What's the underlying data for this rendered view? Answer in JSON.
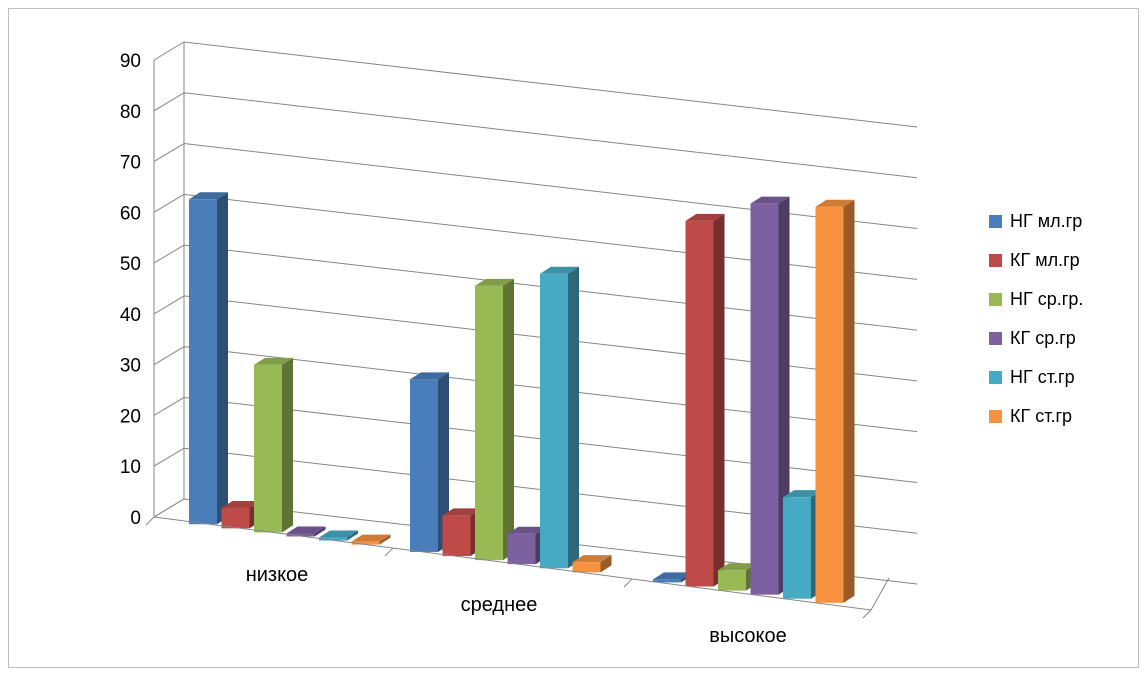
{
  "chart_data": {
    "type": "bar",
    "title": "",
    "xlabel": "",
    "ylabel": "",
    "ylim": [
      0,
      90
    ],
    "y_ticks": [
      "0",
      "10",
      "20",
      "30",
      "40",
      "50",
      "60",
      "70",
      "80",
      "90"
    ],
    "grid": true,
    "legend_position": "right",
    "categories": [
      "низкое",
      "среднее",
      "высокое"
    ],
    "series": [
      {
        "name": "НГ мл.гр",
        "color": "#4a7ebb",
        "values": [
          64,
          34,
          0
        ]
      },
      {
        "name": "КГ мл.гр",
        "color": "#be4b48",
        "values": [
          4,
          8,
          72
        ]
      },
      {
        "name": "НГ ср.гр.",
        "color": "#98b954",
        "values": [
          33,
          54,
          4
        ]
      },
      {
        "name": "КГ ср.гр",
        "color": "#7d60a0",
        "values": [
          0,
          6,
          77
        ]
      },
      {
        "name": "НГ ст.гр",
        "color": "#46aac5",
        "values": [
          0,
          58,
          20
        ]
      },
      {
        "name": "КГ ст.гр",
        "color": "#f69240",
        "values": [
          0,
          2,
          78
        ]
      }
    ]
  }
}
